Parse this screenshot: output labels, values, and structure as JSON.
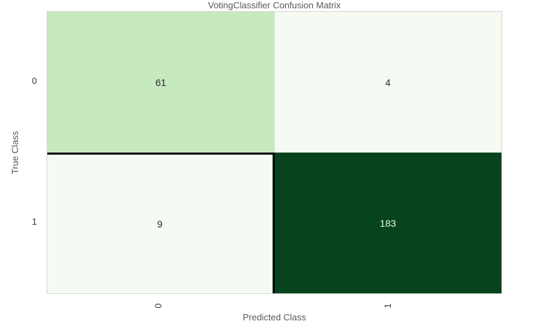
{
  "chart_data": {
    "type": "heatmap",
    "title": "VotingClassifier Confusion Matrix",
    "xlabel": "Predicted Class",
    "ylabel": "True Class",
    "x_tick_labels": [
      "0",
      "1"
    ],
    "y_tick_labels": [
      "0",
      "1"
    ],
    "matrix": [
      [
        61,
        4
      ],
      [
        9,
        183
      ]
    ],
    "colormap": "Greens",
    "legend": "none",
    "grid": false,
    "cells": [
      {
        "true_class": "0",
        "predicted_class": "0",
        "value": 61,
        "bg": "#c7e9c0",
        "fg": "#2b2b2b"
      },
      {
        "true_class": "0",
        "predicted_class": "1",
        "value": 4,
        "bg": "#f5faf2",
        "fg": "#2b2b2b"
      },
      {
        "true_class": "1",
        "predicted_class": "0",
        "value": 9,
        "bg": "#f5faf2",
        "fg": "#2b2b2b"
      },
      {
        "true_class": "1",
        "predicted_class": "1",
        "value": 183,
        "bg": "#07441e",
        "fg": "#edf2ed"
      }
    ],
    "colors": {
      "figure_background": "#ffffff",
      "spine": "#d6d6d6",
      "boundary_line": "#000000",
      "title_text": "#5a5a5a",
      "axis_label_text": "#5a5a5a",
      "tick_text": "#3a3a3a"
    }
  }
}
